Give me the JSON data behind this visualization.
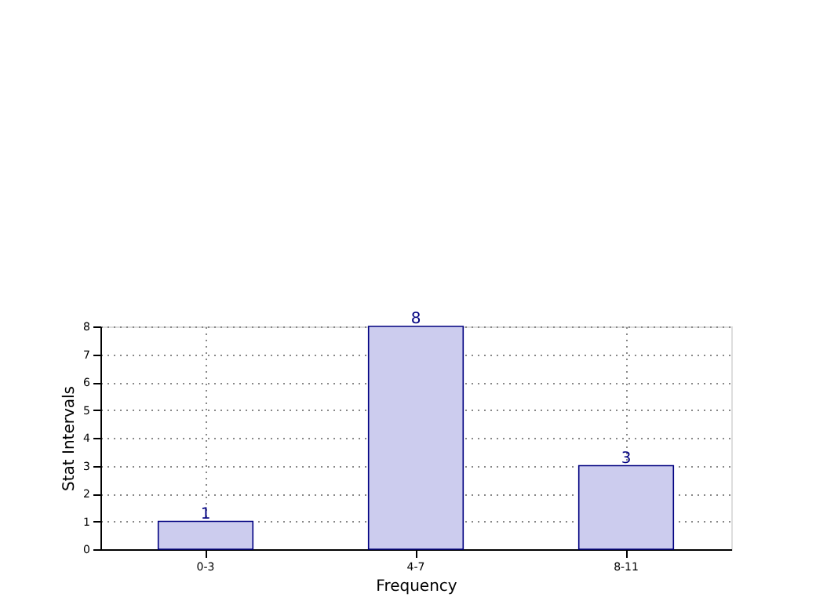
{
  "chart_data": {
    "type": "bar",
    "xlabel": "Frequency",
    "ylabel": "Stat Intervals",
    "categories": [
      "0-3",
      "4-7",
      "8-11"
    ],
    "series": [
      {
        "color": "#ccccee",
        "values": [
          1,
          8,
          3
        ]
      }
    ],
    "ylim": [
      0,
      8
    ],
    "yticks": [
      0,
      1,
      2,
      3,
      4,
      5,
      6,
      7,
      8
    ],
    "grid": true,
    "data_labels": true
  }
}
